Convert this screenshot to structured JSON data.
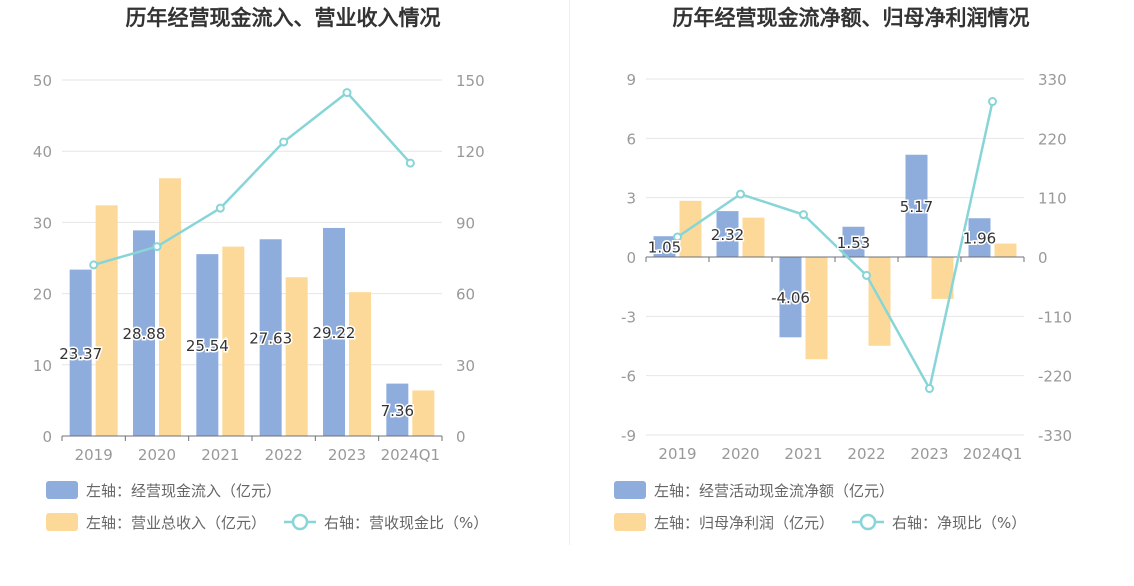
{
  "colors": {
    "bar_primary": "#8eacdc",
    "bar_secondary": "#fdd999",
    "line": "#88d5d8",
    "grid": "#e6e6e6",
    "axis_text": "#999999",
    "label_text": "#333333"
  },
  "chart_data": [
    {
      "type": "bar",
      "title": "历年经营现金流入、营业收入情况",
      "categories": [
        "2019",
        "2020",
        "2021",
        "2022",
        "2023",
        "2024Q1"
      ],
      "y_left": {
        "min": 0,
        "max": 50,
        "ticks": [
          "0",
          "10",
          "20",
          "30",
          "40",
          "50"
        ]
      },
      "y_right": {
        "min": 0,
        "max": 150,
        "ticks": [
          "0",
          "30",
          "60",
          "90",
          "120",
          "150"
        ]
      },
      "series": [
        {
          "name": "左轴：经营现金流入（亿元）",
          "kind": "bar",
          "axis": "left",
          "values": [
            23.37,
            28.88,
            25.54,
            27.63,
            29.22,
            7.36
          ],
          "labels": [
            "23.37",
            "28.88",
            "25.54",
            "27.63",
            "29.22",
            "7.36"
          ]
        },
        {
          "name": "左轴：营业总收入（亿元）",
          "kind": "bar",
          "axis": "left",
          "values": [
            32.4,
            36.2,
            26.6,
            22.3,
            20.2,
            6.4
          ]
        },
        {
          "name": "右轴：营收现金比（%）",
          "kind": "line",
          "axis": "right",
          "values": [
            72.1,
            79.8,
            96.0,
            123.9,
            144.7,
            115.0
          ]
        }
      ]
    },
    {
      "type": "bar",
      "title": "历年经营现金流净额、归母净利润情况",
      "categories": [
        "2019",
        "2020",
        "2021",
        "2022",
        "2023",
        "2024Q1"
      ],
      "y_left": {
        "min": -9,
        "max": 9,
        "ticks": [
          "-9",
          "-6",
          "-3",
          "0",
          "3",
          "6",
          "9"
        ]
      },
      "y_right": {
        "min": -330,
        "max": 330,
        "ticks": [
          "-330",
          "-220",
          "-110",
          "0",
          "110",
          "220",
          "330"
        ]
      },
      "series": [
        {
          "name": "左轴：经营活动现金流净额（亿元）",
          "kind": "bar",
          "axis": "left",
          "values": [
            1.05,
            2.32,
            -4.06,
            1.53,
            5.17,
            1.96
          ],
          "labels": [
            "1.05",
            "2.32",
            "-4.06",
            "1.53",
            "5.17",
            "1.96"
          ]
        },
        {
          "name": "左轴：归母净利润（亿元）",
          "kind": "bar",
          "axis": "left",
          "values": [
            2.84,
            1.99,
            -5.17,
            -4.49,
            -2.12,
            0.68
          ]
        },
        {
          "name": "右轴：净现比（%）",
          "kind": "line",
          "axis": "right",
          "values": [
            37.0,
            116.6,
            78.5,
            -34.1,
            -243.9,
            288.2
          ]
        }
      ]
    }
  ]
}
